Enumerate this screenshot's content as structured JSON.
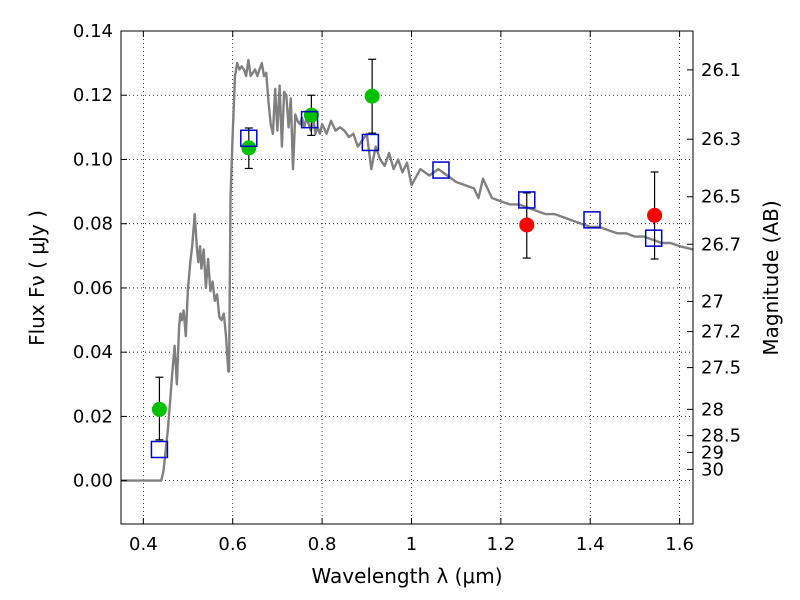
{
  "chart_data": {
    "type": "scatter",
    "xlabel": "Wavelength  λ (μm)",
    "ylabel": "Flux  Fν  ( μJy )",
    "y2label": "Magnitude (AB)",
    "xlim": [
      0.35,
      1.63
    ],
    "ylim": [
      -0.0135,
      0.14
    ],
    "x_ticks": [
      {
        "value": 0.4,
        "label": "0.4"
      },
      {
        "value": 0.6,
        "label": "0.6"
      },
      {
        "value": 0.8,
        "label": "0.8"
      },
      {
        "value": 1.0,
        "label": "1"
      },
      {
        "value": 1.2,
        "label": "1.2"
      },
      {
        "value": 1.4,
        "label": "1.4"
      },
      {
        "value": 1.6,
        "label": "1.6"
      }
    ],
    "y_ticks": [
      {
        "value": 0.0,
        "label": "0.00"
      },
      {
        "value": 0.02,
        "label": "0.02"
      },
      {
        "value": 0.04,
        "label": "0.04"
      },
      {
        "value": 0.06,
        "label": "0.06"
      },
      {
        "value": 0.08,
        "label": "0.08"
      },
      {
        "value": 0.1,
        "label": "0.10"
      },
      {
        "value": 0.12,
        "label": "0.12"
      },
      {
        "value": 0.14,
        "label": "0.14"
      }
    ],
    "magnitude_ticks": [
      {
        "label": "26.1",
        "flux": 0.1279
      },
      {
        "label": "26.3",
        "flux": 0.1063
      },
      {
        "label": "26.5",
        "flux": 0.0884
      },
      {
        "label": "26.7",
        "flux": 0.0736
      },
      {
        "label": "27",
        "flux": 0.0558
      },
      {
        "label": "27.2",
        "flux": 0.0464
      },
      {
        "label": "27.5",
        "flux": 0.0352
      },
      {
        "label": "28",
        "flux": 0.0222
      },
      {
        "label": "28.5",
        "flux": 0.014
      },
      {
        "label": "29",
        "flux": 0.0088
      },
      {
        "label": "30",
        "flux": 0.0035
      }
    ],
    "grid": true,
    "colors": {
      "model": "#808080",
      "green": "#00c000",
      "red": "#ff0000",
      "squares": "#0000cc",
      "errorbar": "#000000"
    },
    "model_spectrum": {
      "x": [
        0.35,
        0.44,
        0.445,
        0.455,
        0.46,
        0.465,
        0.47,
        0.475,
        0.48,
        0.483,
        0.486,
        0.49,
        0.495,
        0.5,
        0.505,
        0.51,
        0.515,
        0.52,
        0.523,
        0.527,
        0.53,
        0.535,
        0.54,
        0.545,
        0.55,
        0.555,
        0.56,
        0.565,
        0.57,
        0.575,
        0.58,
        0.585,
        0.59,
        0.592,
        0.595,
        0.6,
        0.605,
        0.61,
        0.615,
        0.62,
        0.625,
        0.63,
        0.635,
        0.64,
        0.645,
        0.65,
        0.655,
        0.66,
        0.665,
        0.67,
        0.675,
        0.68,
        0.685,
        0.69,
        0.695,
        0.7,
        0.705,
        0.71,
        0.715,
        0.72,
        0.725,
        0.73,
        0.735,
        0.74,
        0.745,
        0.75,
        0.755,
        0.76,
        0.765,
        0.77,
        0.775,
        0.78,
        0.785,
        0.79,
        0.795,
        0.8,
        0.81,
        0.82,
        0.83,
        0.84,
        0.85,
        0.86,
        0.87,
        0.88,
        0.89,
        0.9,
        0.91,
        0.92,
        0.93,
        0.94,
        0.95,
        0.96,
        0.97,
        0.98,
        0.99,
        1.0,
        1.02,
        1.04,
        1.06,
        1.08,
        1.1,
        1.12,
        1.14,
        1.15,
        1.16,
        1.18,
        1.2,
        1.22,
        1.24,
        1.26,
        1.28,
        1.3,
        1.32,
        1.34,
        1.36,
        1.38,
        1.4,
        1.42,
        1.44,
        1.46,
        1.48,
        1.5,
        1.52,
        1.54,
        1.56,
        1.58,
        1.6,
        1.63
      ],
      "y": [
        0.0,
        0.0,
        0.003,
        0.016,
        0.025,
        0.034,
        0.042,
        0.03,
        0.048,
        0.052,
        0.05,
        0.053,
        0.045,
        0.06,
        0.068,
        0.074,
        0.083,
        0.072,
        0.068,
        0.073,
        0.066,
        0.072,
        0.06,
        0.069,
        0.059,
        0.062,
        0.056,
        0.058,
        0.051,
        0.05,
        0.052,
        0.045,
        0.034,
        0.034,
        0.088,
        0.108,
        0.126,
        0.13,
        0.128,
        0.129,
        0.128,
        0.126,
        0.131,
        0.126,
        0.127,
        0.128,
        0.126,
        0.128,
        0.13,
        0.126,
        0.127,
        0.118,
        0.111,
        0.108,
        0.122,
        0.109,
        0.123,
        0.104,
        0.121,
        0.12,
        0.11,
        0.119,
        0.097,
        0.114,
        0.112,
        0.111,
        0.113,
        0.11,
        0.113,
        0.111,
        0.109,
        0.113,
        0.108,
        0.11,
        0.108,
        0.111,
        0.108,
        0.112,
        0.109,
        0.11,
        0.109,
        0.107,
        0.108,
        0.104,
        0.106,
        0.108,
        0.097,
        0.104,
        0.1,
        0.098,
        0.102,
        0.097,
        0.1,
        0.096,
        0.099,
        0.092,
        0.097,
        0.095,
        0.097,
        0.095,
        0.093,
        0.092,
        0.091,
        0.088,
        0.094,
        0.088,
        0.087,
        0.086,
        0.086,
        0.085,
        0.084,
        0.083,
        0.083,
        0.082,
        0.081,
        0.08,
        0.079,
        0.079,
        0.078,
        0.077,
        0.077,
        0.076,
        0.076,
        0.075,
        0.074,
        0.074,
        0.073,
        0.072
      ]
    },
    "series": [
      {
        "marker": "circle",
        "color": "green",
        "points": [
          {
            "x": 0.436,
            "y": 0.0222,
            "yerr_low": 0.0127,
            "yerr_high": 0.0322
          },
          {
            "x": 0.636,
            "y": 0.1036,
            "yerr_low": 0.0972,
            "yerr_high": 0.1098
          },
          {
            "x": 0.776,
            "y": 0.1138,
            "yerr_low": 0.1075,
            "yerr_high": 0.12
          },
          {
            "x": 0.912,
            "y": 0.1197,
            "yerr_low": 0.1082,
            "yerr_high": 0.1312
          }
        ]
      },
      {
        "marker": "circle",
        "color": "red",
        "points": [
          {
            "x": 1.258,
            "y": 0.0796,
            "yerr_low": 0.0693,
            "yerr_high": 0.0896
          },
          {
            "x": 1.544,
            "y": 0.0826,
            "yerr_low": 0.069,
            "yerr_high": 0.0961
          }
        ]
      },
      {
        "marker": "open-square",
        "color": "squares",
        "points": [
          {
            "x": 0.436,
            "y": 0.0097
          },
          {
            "x": 0.636,
            "y": 0.1066
          },
          {
            "x": 0.772,
            "y": 0.1124
          },
          {
            "x": 0.908,
            "y": 0.1053
          },
          {
            "x": 1.066,
            "y": 0.0967
          },
          {
            "x": 1.258,
            "y": 0.0874
          },
          {
            "x": 1.404,
            "y": 0.0812
          },
          {
            "x": 1.542,
            "y": 0.0755
          }
        ]
      }
    ]
  }
}
